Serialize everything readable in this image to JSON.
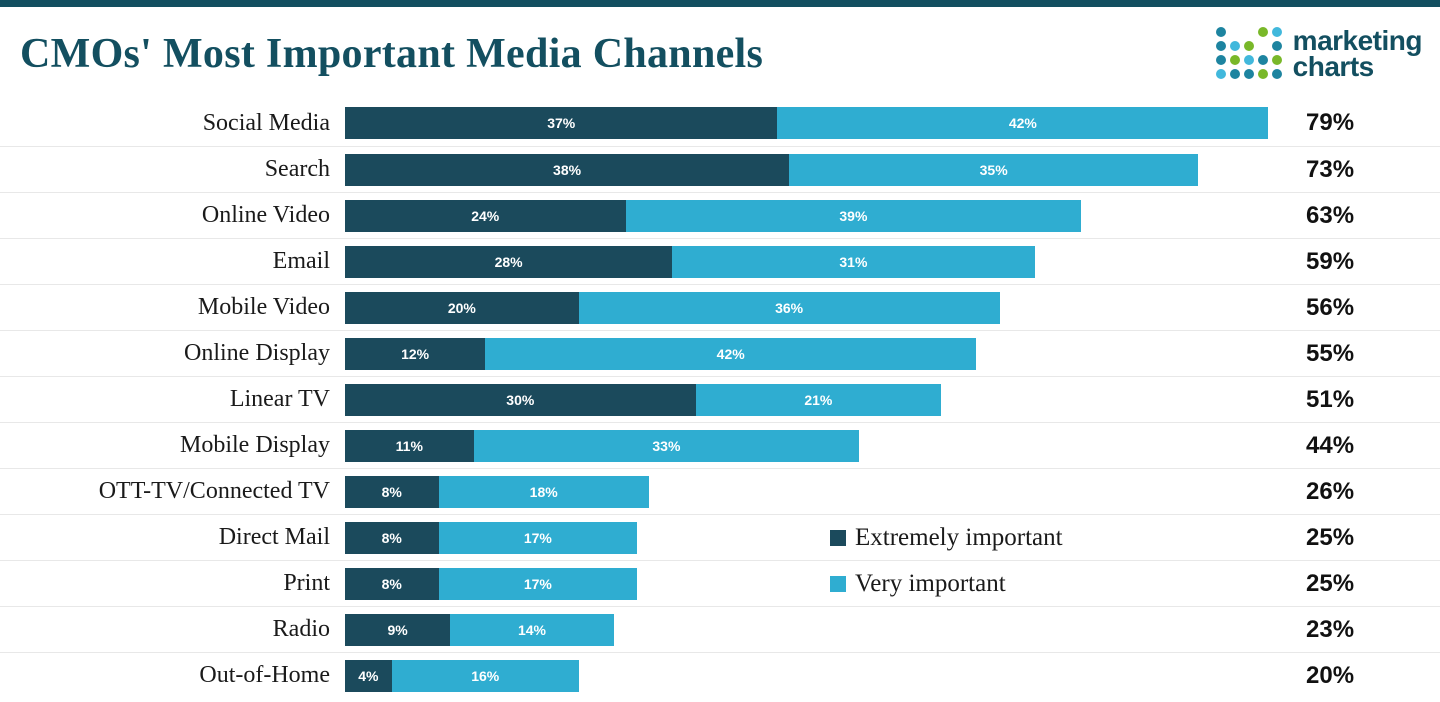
{
  "header": {
    "title": "CMOs' Most Important Media Channels",
    "logo": {
      "line1": "marketing",
      "line2": "charts"
    }
  },
  "colors": {
    "accent_teal": "#134f60",
    "dark_segment": "#1b4a5c",
    "light_segment": "#2fadd1",
    "separator": "#e8e8e8",
    "logo_dot_teal": "#1d84a0",
    "logo_dot_green": "#79b829",
    "logo_dot_blue": "#41b8dc"
  },
  "chart_data": {
    "type": "bar",
    "orientation": "horizontal",
    "stacked": true,
    "title": "CMOs' Most Important Media Channels",
    "categories": [
      "Social Media",
      "Search",
      "Online Video",
      "Email",
      "Mobile Video",
      "Online Display",
      "Linear TV",
      "Mobile Display",
      "OTT-TV/Connected TV",
      "Direct Mail",
      "Print",
      "Radio",
      "Out-of-Home"
    ],
    "series": [
      {
        "name": "Extremely important",
        "color": "#1b4a5c",
        "values": [
          37,
          38,
          24,
          28,
          20,
          12,
          30,
          11,
          8,
          8,
          8,
          9,
          4
        ]
      },
      {
        "name": "Very important",
        "color": "#2fadd1",
        "values": [
          42,
          35,
          39,
          31,
          36,
          42,
          21,
          33,
          18,
          17,
          17,
          14,
          16
        ]
      }
    ],
    "totals": [
      "79%",
      "73%",
      "63%",
      "59%",
      "56%",
      "55%",
      "51%",
      "44%",
      "26%",
      "25%",
      "25%",
      "23%",
      "20%"
    ],
    "value_suffix": "%",
    "xlim": [
      0,
      80
    ],
    "grid": "horizontal-row-separators",
    "legend_position": "overlay-center-right"
  }
}
